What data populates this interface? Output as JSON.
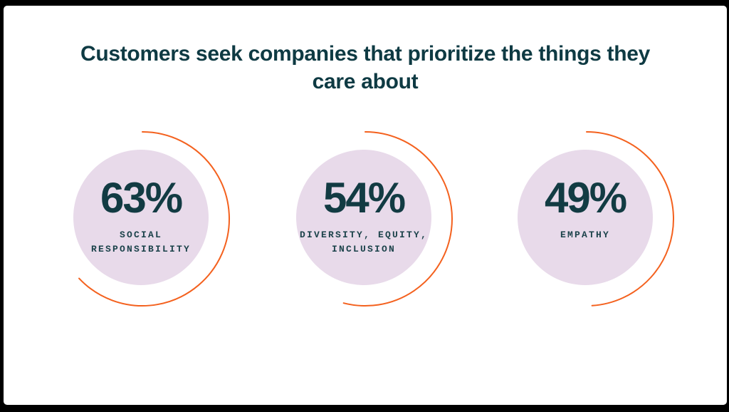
{
  "frame": {
    "background": "#000000",
    "slide_background": "#ffffff"
  },
  "title": {
    "text": "Customers seek companies that prioritize the things they care about",
    "line1": "Customers seek companies that prioritize the things they",
    "line2": "care about",
    "color": "#0e3a43"
  },
  "colors": {
    "bubble_fill": "#e8daea",
    "arc_stroke": "#f4611e",
    "number_color": "#123b43",
    "label_color": "#1b424a"
  },
  "stats": [
    {
      "value": 63,
      "number_label": "63%",
      "category": "SOCIAL RESPONSIBILITY"
    },
    {
      "value": 54,
      "number_label": "54%",
      "category": "DIVERSITY, EQUITY, INCLUSION"
    },
    {
      "value": 49,
      "number_label": "49%",
      "category": "EMPATHY"
    }
  ],
  "chart_data": {
    "type": "pie",
    "variant": "progress-rings",
    "title": "Customers seek companies that prioritize the things they care about",
    "categories": [
      "SOCIAL RESPONSIBILITY",
      "DIVERSITY, EQUITY, INCLUSION",
      "EMPATHY"
    ],
    "values": [
      63,
      54,
      49
    ],
    "unit": "%",
    "ring_start_deg": 90,
    "ring_direction": "clockwise",
    "legend_position": "none",
    "grid": false
  }
}
